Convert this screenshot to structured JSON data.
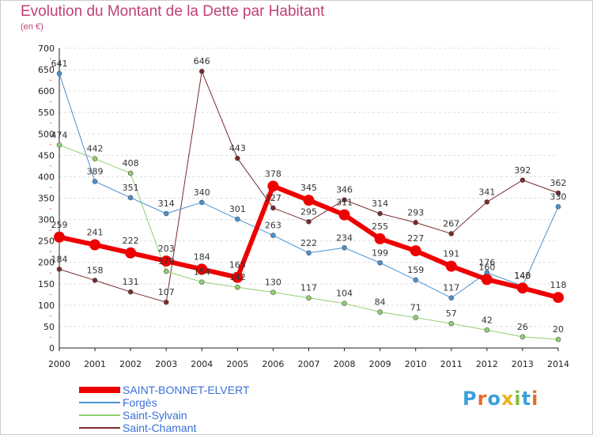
{
  "header": {
    "title": "Evolution du Montant de la Dette par Habitant",
    "subtitle": "(en €)"
  },
  "logo": {
    "letters": [
      "P",
      "r",
      "o",
      "x",
      "i",
      "t",
      "i"
    ],
    "colors": [
      "#3ba0d8",
      "#e86b2a",
      "#3ba0d8",
      "#e8b020",
      "#7cc040",
      "#3ba0d8",
      "#e86b2a"
    ]
  },
  "chart_data": {
    "type": "line",
    "title": "Evolution du Montant de la Dette par Habitant",
    "subtitle": "(en €)",
    "xlabel": "",
    "ylabel": "",
    "ylim": [
      0,
      700
    ],
    "yticks": [
      0,
      50,
      100,
      150,
      200,
      250,
      300,
      350,
      400,
      450,
      500,
      550,
      600,
      650,
      700
    ],
    "grid": "horizontal dashed",
    "legend": "bottom-left",
    "x": [
      "2000",
      "2001",
      "2002",
      "2003",
      "2004",
      "2005",
      "2006",
      "2007",
      "2008",
      "2009",
      "2010",
      "2011",
      "2012",
      "2013",
      "2014"
    ],
    "series": [
      {
        "name": "Saint-Chamant",
        "color": "#7a2a2a",
        "width": 1,
        "values": [
          184,
          158,
          131,
          107,
          646,
          443,
          327,
          295,
          346,
          314,
          293,
          267,
          341,
          392,
          362
        ]
      },
      {
        "name": "Saint-Sylvain",
        "color": "#90d070",
        "width": 1,
        "values": [
          474,
          442,
          408,
          179,
          154,
          142,
          130,
          117,
          104,
          84,
          71,
          57,
          42,
          26,
          20
        ]
      },
      {
        "name": "Forgès",
        "color": "#4a90d0",
        "width": 1,
        "values": [
          641,
          389,
          351,
          314,
          340,
          301,
          263,
          222,
          234,
          199,
          159,
          117,
          176,
          145,
          330
        ]
      },
      {
        "name": "SAINT-BONNET-ELVERT",
        "color": "#ee0000",
        "width": 6,
        "values": [
          259,
          241,
          222,
          203,
          184,
          165,
          378,
          345,
          311,
          255,
          227,
          191,
          160,
          140,
          118
        ]
      }
    ],
    "legend_order": [
      "SAINT-BONNET-ELVERT",
      "Forgès",
      "Saint-Sylvain",
      "Saint-Chamant"
    ]
  }
}
